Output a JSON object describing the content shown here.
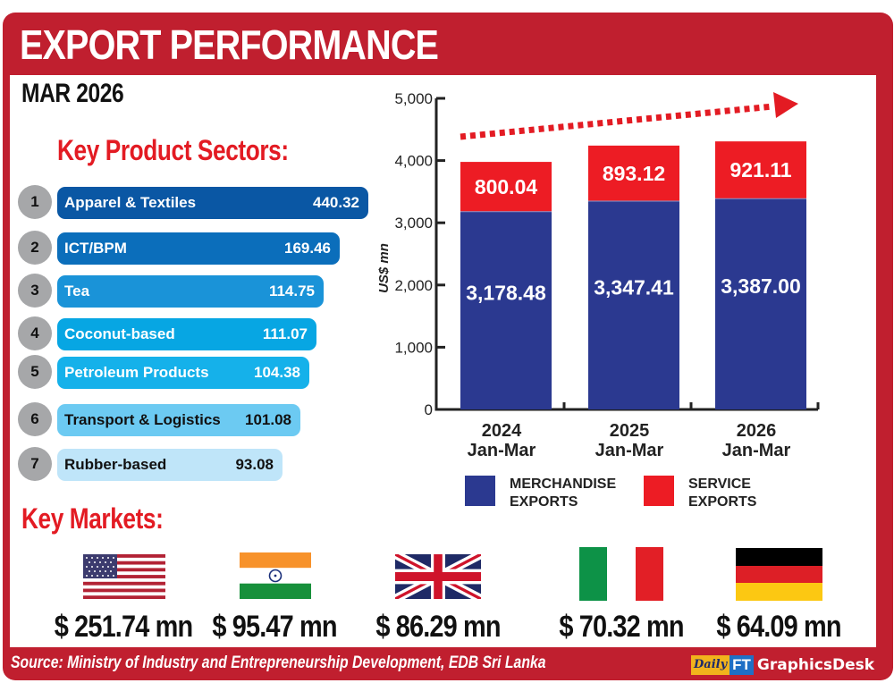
{
  "header": {
    "title": "EXPORT PERFORMANCE",
    "period": "MAR 2026"
  },
  "sectors": {
    "title": "Key Product Sectors:",
    "items": [
      {
        "rank": "1",
        "name": "Apparel & Textiles",
        "value": "440.32",
        "color": "#0a57a4",
        "text_color": "#ffffff"
      },
      {
        "rank": "2",
        "name": "ICT/BPM",
        "value": "169.46",
        "color": "#0b6ebb",
        "text_color": "#ffffff"
      },
      {
        "rank": "3",
        "name": "Tea",
        "value": "114.75",
        "color": "#1a93d8",
        "text_color": "#ffffff"
      },
      {
        "rank": "4",
        "name": "Coconut-based",
        "value": "111.07",
        "color": "#07a6e3",
        "text_color": "#ffffff"
      },
      {
        "rank": "5",
        "name": "Petroleum Products",
        "value": "104.38",
        "color": "#15b1ea",
        "text_color": "#ffffff"
      },
      {
        "rank": "6",
        "name": "Transport & Logistics",
        "value": "101.08",
        "color": "#6ccaf2",
        "text_color": "#111111"
      },
      {
        "rank": "7",
        "name": "Rubber-based",
        "value": "93.08",
        "color": "#bfe5f9",
        "text_color": "#111111"
      }
    ]
  },
  "chart_data": {
    "type": "bar",
    "stacked": true,
    "title": "",
    "xlabel": "",
    "ylabel": "US$ mn",
    "ylim": [
      0,
      5000
    ],
    "yticks": [
      0,
      1000,
      2000,
      3000,
      4000,
      5000
    ],
    "ytick_labels": [
      "0",
      "1,000",
      "2,000",
      "3,000",
      "4,000",
      "5,000"
    ],
    "categories": [
      {
        "year": "2024",
        "period": "Jan-Mar"
      },
      {
        "year": "2025",
        "period": "Jan-Mar"
      },
      {
        "year": "2026",
        "period": "Jan-Mar"
      }
    ],
    "series": [
      {
        "name": "MERCHANDISE EXPORTS",
        "color": "#2b3990",
        "values": [
          3178.48,
          3347.41,
          3387.0
        ],
        "labels": [
          "3,178.48",
          "3,347.41",
          "3,387.00"
        ]
      },
      {
        "name": "SERVICE EXPORTS",
        "color": "#ed1c24",
        "values": [
          800.04,
          893.12,
          921.11
        ],
        "labels": [
          "800.04",
          "893.12",
          "921.11"
        ]
      }
    ],
    "legend": {
      "position": "bottom",
      "items": [
        {
          "line1": "MERCHANDISE",
          "line2": "EXPORTS",
          "color": "#2b3990"
        },
        {
          "line1": "SERVICE",
          "line2": "EXPORTS",
          "color": "#ed1c24"
        }
      ]
    },
    "annotation": "upward-trend-arrow"
  },
  "markets": {
    "title": "Key Markets:",
    "items": [
      {
        "country": "United States",
        "flag": "us-flag",
        "value": "$ 251.74 mn"
      },
      {
        "country": "India",
        "flag": "india-flag",
        "value": "$ 95.47 mn"
      },
      {
        "country": "United Kingdom",
        "flag": "uk-flag",
        "value": "$ 86.29 mn"
      },
      {
        "country": "Italy",
        "flag": "italy-flag",
        "value": "$ 70.32 mn"
      },
      {
        "country": "Germany",
        "flag": "germany-flag",
        "value": "$ 64.09 mn"
      }
    ]
  },
  "footer": {
    "source": "Source: Ministry of Industry and Entrepreneurship Development, EDB Sri Lanka",
    "logo_daily": "Daily",
    "logo_ft": "FT",
    "logo_desk": "GraphicsDesk"
  },
  "colors": {
    "frame": "#c01f2f",
    "accent_red": "#e31b23"
  }
}
